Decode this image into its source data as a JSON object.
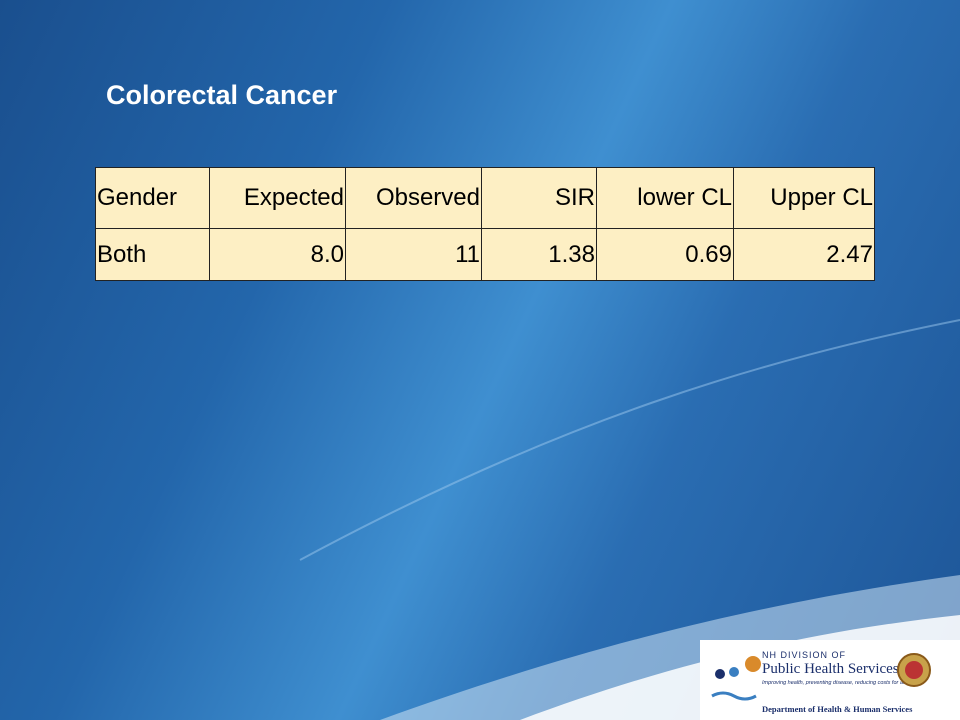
{
  "title": "Colorectal Cancer",
  "table": {
    "header": [
      "Gender",
      "Expected",
      "Observed",
      "SIR",
      "lower CL",
      "Upper CL"
    ],
    "rows": [
      [
        "Both",
        "8.0",
        "11",
        "1.38",
        "0.69",
        "2.47"
      ]
    ]
  },
  "logo": {
    "line1": "NH DIVISION OF",
    "line2": "Public Health Services",
    "tagline": "Improving health, preventing disease, reducing costs for all",
    "department": "Department of Health & Human Services"
  }
}
